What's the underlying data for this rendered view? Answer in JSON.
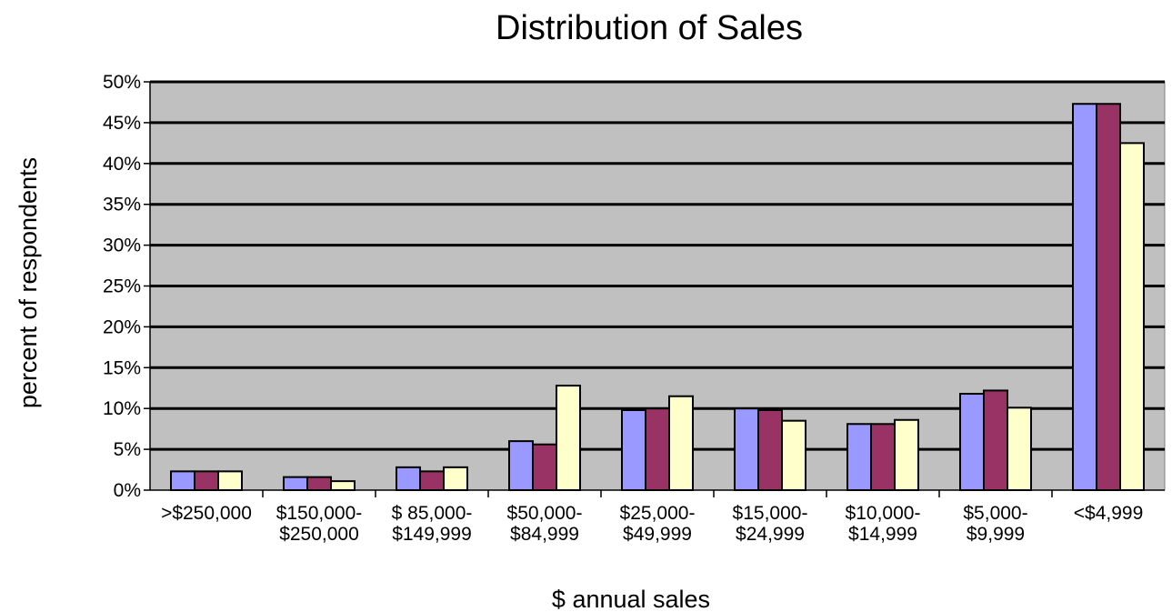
{
  "chart_data": {
    "type": "bar",
    "title": "Distribution of Sales",
    "xlabel": "$ annual sales",
    "ylabel": "percent of respondents",
    "categories": [
      [
        ">$250,000"
      ],
      [
        "$150,000-",
        "$250,000"
      ],
      [
        "$ 85,000-",
        "$149,999"
      ],
      [
        "$50,000-",
        "$84,999"
      ],
      [
        "$25,000-",
        "$49,999"
      ],
      [
        "$15,000-",
        "$24,999"
      ],
      [
        "$10,000-",
        "$14,999"
      ],
      [
        "$5,000-",
        "$9,999"
      ],
      [
        "<$4,999"
      ]
    ],
    "series": [
      {
        "color": "#9999ff",
        "values": [
          2.3,
          1.6,
          2.8,
          6.0,
          9.8,
          10.0,
          8.1,
          11.8,
          47.3
        ]
      },
      {
        "color": "#993366",
        "values": [
          2.3,
          1.6,
          2.3,
          5.6,
          10.0,
          9.8,
          8.1,
          12.2,
          47.3
        ]
      },
      {
        "color": "#ffffcc",
        "values": [
          2.3,
          1.1,
          2.8,
          12.8,
          11.5,
          8.5,
          8.6,
          10.1,
          42.5
        ]
      }
    ],
    "ylim": [
      0,
      50
    ],
    "yticks": [
      "0%",
      "5%",
      "10%",
      "15%",
      "20%",
      "25%",
      "30%",
      "35%",
      "40%",
      "45%",
      "50%"
    ],
    "grid": true,
    "plot_background": "#c0c0c0"
  }
}
